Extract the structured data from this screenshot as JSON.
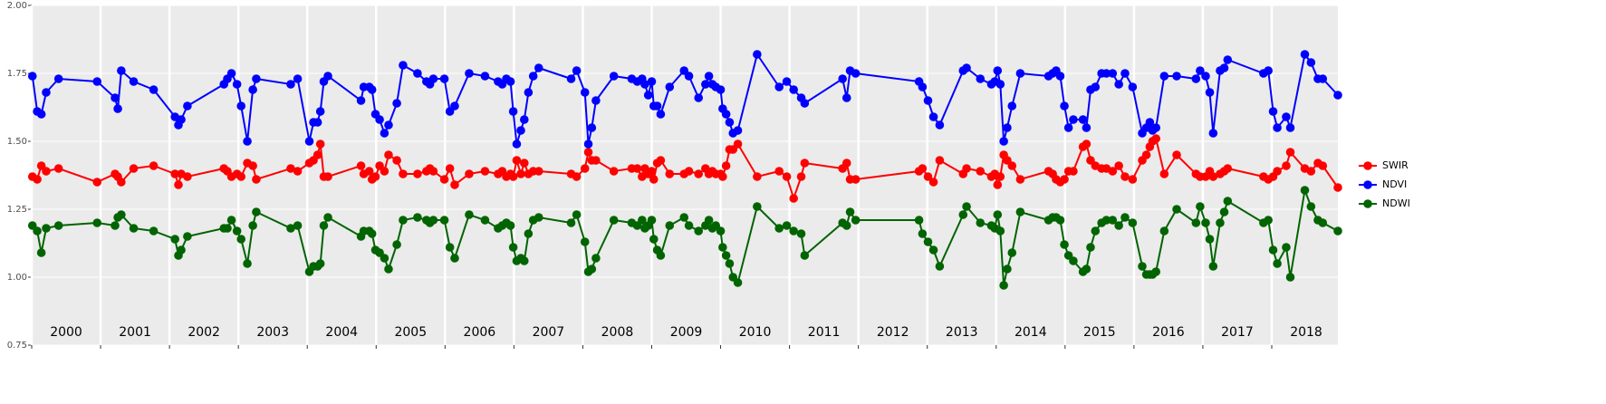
{
  "chart_data": {
    "type": "line",
    "x": [
      2000.01,
      2000.08,
      2000.14,
      2000.21,
      2000.39,
      2000.95,
      2001.21,
      2001.25,
      2001.3,
      2001.48,
      2001.77,
      2002.08,
      2002.13,
      2002.17,
      2002.26,
      2002.79,
      2002.84,
      2002.9,
      2002.98,
      2003.04,
      2003.13,
      2003.21,
      2003.26,
      2003.76,
      2003.86,
      2004.03,
      2004.09,
      2004.15,
      2004.19,
      2004.24,
      2004.3,
      2004.78,
      2004.82,
      2004.9,
      2004.94,
      2004.99,
      2005.05,
      2005.12,
      2005.18,
      2005.3,
      2005.39,
      2005.6,
      2005.73,
      2005.78,
      2005.83,
      2005.99,
      2006.07,
      2006.14,
      2006.35,
      2006.58,
      2006.77,
      2006.83,
      2006.89,
      2006.95,
      2006.99,
      2007.04,
      2007.1,
      2007.15,
      2007.21,
      2007.28,
      2007.36,
      2007.83,
      2007.91,
      2008.03,
      2008.08,
      2008.13,
      2008.19,
      2008.45,
      2008.71,
      2008.79,
      2008.86,
      2008.9,
      2008.95,
      2009.0,
      2009.03,
      2009.08,
      2009.13,
      2009.26,
      2009.47,
      2009.54,
      2009.68,
      2009.78,
      2009.83,
      2009.88,
      2009.93,
      2010.0,
      2010.03,
      2010.08,
      2010.13,
      2010.18,
      2010.25,
      2010.53,
      2010.85,
      2010.96,
      2011.06,
      2011.17,
      2011.22,
      2011.77,
      2011.83,
      2011.88,
      2011.96,
      2012.88,
      2012.93,
      2013.01,
      2013.09,
      2013.18,
      2013.52,
      2013.57,
      2013.77,
      2013.93,
      2013.98,
      2014.02,
      2014.06,
      2014.11,
      2014.16,
      2014.23,
      2014.35,
      2014.76,
      2014.82,
      2014.87,
      2014.93,
      2014.99,
      2015.05,
      2015.12,
      2015.26,
      2015.31,
      2015.37,
      2015.44,
      2015.53,
      2015.6,
      2015.69,
      2015.78,
      2015.87,
      2015.98,
      2016.12,
      2016.18,
      2016.23,
      2016.27,
      2016.32,
      2016.44,
      2016.62,
      2016.9,
      2016.96,
      2017.04,
      2017.1,
      2017.15,
      2017.25,
      2017.31,
      2017.36,
      2017.88,
      2017.95,
      2018.02,
      2018.08,
      2018.21,
      2018.27,
      2018.48,
      2018.57,
      2018.67,
      2018.74,
      2018.96
    ],
    "series": [
      {
        "name": "SWIR",
        "color": "#ff0000",
        "values": [
          1.37,
          1.36,
          1.41,
          1.39,
          1.4,
          1.35,
          1.38,
          1.37,
          1.35,
          1.4,
          1.41,
          1.38,
          1.34,
          1.38,
          1.37,
          1.4,
          1.39,
          1.37,
          1.38,
          1.37,
          1.42,
          1.41,
          1.36,
          1.4,
          1.39,
          1.42,
          1.43,
          1.45,
          1.49,
          1.37,
          1.37,
          1.41,
          1.38,
          1.39,
          1.36,
          1.37,
          1.41,
          1.39,
          1.45,
          1.43,
          1.38,
          1.38,
          1.39,
          1.4,
          1.39,
          1.36,
          1.4,
          1.34,
          1.38,
          1.39,
          1.38,
          1.39,
          1.37,
          1.38,
          1.37,
          1.43,
          1.38,
          1.42,
          1.38,
          1.39,
          1.39,
          1.38,
          1.37,
          1.4,
          1.46,
          1.43,
          1.43,
          1.39,
          1.4,
          1.4,
          1.37,
          1.4,
          1.38,
          1.39,
          1.36,
          1.42,
          1.43,
          1.38,
          1.38,
          1.39,
          1.38,
          1.4,
          1.38,
          1.39,
          1.38,
          1.38,
          1.37,
          1.41,
          1.47,
          1.47,
          1.49,
          1.37,
          1.39,
          1.37,
          1.29,
          1.37,
          1.42,
          1.4,
          1.42,
          1.36,
          1.36,
          1.39,
          1.4,
          1.37,
          1.35,
          1.43,
          1.38,
          1.4,
          1.39,
          1.37,
          1.38,
          1.34,
          1.37,
          1.45,
          1.43,
          1.41,
          1.36,
          1.39,
          1.38,
          1.36,
          1.35,
          1.36,
          1.39,
          1.39,
          1.48,
          1.49,
          1.43,
          1.41,
          1.4,
          1.4,
          1.39,
          1.41,
          1.37,
          1.36,
          1.43,
          1.45,
          1.48,
          1.5,
          1.51,
          1.38,
          1.45,
          1.38,
          1.37,
          1.37,
          1.39,
          1.37,
          1.38,
          1.39,
          1.4,
          1.37,
          1.36,
          1.37,
          1.39,
          1.41,
          1.46,
          1.4,
          1.39,
          1.42,
          1.41,
          1.33
        ]
      },
      {
        "name": "NDVI",
        "color": "#0000ff",
        "values": [
          1.74,
          1.61,
          1.6,
          1.68,
          1.73,
          1.72,
          1.66,
          1.62,
          1.76,
          1.72,
          1.69,
          1.59,
          1.56,
          1.58,
          1.63,
          1.71,
          1.73,
          1.75,
          1.71,
          1.63,
          1.5,
          1.69,
          1.73,
          1.71,
          1.73,
          1.5,
          1.57,
          1.57,
          1.61,
          1.72,
          1.74,
          1.65,
          1.7,
          1.7,
          1.69,
          1.6,
          1.58,
          1.53,
          1.56,
          1.64,
          1.78,
          1.75,
          1.72,
          1.71,
          1.73,
          1.73,
          1.61,
          1.63,
          1.75,
          1.74,
          1.72,
          1.71,
          1.73,
          1.72,
          1.61,
          1.49,
          1.54,
          1.58,
          1.68,
          1.74,
          1.77,
          1.73,
          1.76,
          1.68,
          1.49,
          1.55,
          1.65,
          1.74,
          1.73,
          1.72,
          1.73,
          1.71,
          1.67,
          1.72,
          1.63,
          1.63,
          1.6,
          1.7,
          1.76,
          1.74,
          1.66,
          1.71,
          1.74,
          1.71,
          1.7,
          1.69,
          1.62,
          1.6,
          1.57,
          1.53,
          1.54,
          1.82,
          1.7,
          1.72,
          1.69,
          1.66,
          1.64,
          1.73,
          1.66,
          1.76,
          1.75,
          1.72,
          1.7,
          1.65,
          1.59,
          1.56,
          1.76,
          1.77,
          1.73,
          1.71,
          1.72,
          1.76,
          1.71,
          1.5,
          1.55,
          1.63,
          1.75,
          1.74,
          1.75,
          1.76,
          1.74,
          1.63,
          1.55,
          1.58,
          1.58,
          1.55,
          1.69,
          1.7,
          1.75,
          1.75,
          1.75,
          1.71,
          1.75,
          1.7,
          1.53,
          1.55,
          1.57,
          1.54,
          1.55,
          1.74,
          1.74,
          1.73,
          1.76,
          1.74,
          1.68,
          1.53,
          1.76,
          1.77,
          1.8,
          1.75,
          1.76,
          1.61,
          1.55,
          1.59,
          1.55,
          1.82,
          1.79,
          1.73,
          1.73,
          1.67
        ]
      },
      {
        "name": "NDWI",
        "color": "#006400",
        "values": [
          1.19,
          1.17,
          1.09,
          1.18,
          1.19,
          1.2,
          1.19,
          1.22,
          1.23,
          1.18,
          1.17,
          1.14,
          1.08,
          1.1,
          1.15,
          1.18,
          1.18,
          1.21,
          1.17,
          1.14,
          1.05,
          1.19,
          1.24,
          1.18,
          1.19,
          1.02,
          1.04,
          1.04,
          1.05,
          1.19,
          1.22,
          1.15,
          1.17,
          1.17,
          1.16,
          1.1,
          1.09,
          1.07,
          1.03,
          1.12,
          1.21,
          1.22,
          1.21,
          1.2,
          1.21,
          1.21,
          1.11,
          1.07,
          1.23,
          1.21,
          1.18,
          1.19,
          1.2,
          1.19,
          1.11,
          1.06,
          1.07,
          1.06,
          1.16,
          1.21,
          1.22,
          1.2,
          1.23,
          1.13,
          1.02,
          1.03,
          1.07,
          1.21,
          1.2,
          1.19,
          1.21,
          1.18,
          1.19,
          1.21,
          1.14,
          1.1,
          1.08,
          1.19,
          1.22,
          1.19,
          1.17,
          1.19,
          1.21,
          1.18,
          1.19,
          1.17,
          1.11,
          1.08,
          1.05,
          1.0,
          0.98,
          1.26,
          1.18,
          1.19,
          1.17,
          1.16,
          1.08,
          1.2,
          1.19,
          1.24,
          1.21,
          1.21,
          1.16,
          1.13,
          1.1,
          1.04,
          1.23,
          1.26,
          1.2,
          1.19,
          1.18,
          1.23,
          1.17,
          0.97,
          1.03,
          1.09,
          1.24,
          1.21,
          1.22,
          1.22,
          1.21,
          1.12,
          1.08,
          1.06,
          1.02,
          1.03,
          1.11,
          1.17,
          1.2,
          1.21,
          1.21,
          1.19,
          1.22,
          1.2,
          1.04,
          1.01,
          1.01,
          1.01,
          1.02,
          1.17,
          1.25,
          1.2,
          1.26,
          1.2,
          1.14,
          1.04,
          1.2,
          1.24,
          1.28,
          1.2,
          1.21,
          1.1,
          1.05,
          1.11,
          1.0,
          1.32,
          1.26,
          1.21,
          1.2,
          1.17
        ]
      }
    ],
    "xlim": [
      2000,
      2018.96
    ],
    "xticks": [
      2000,
      2001,
      2002,
      2003,
      2004,
      2005,
      2006,
      2007,
      2008,
      2009,
      2010,
      2011,
      2012,
      2013,
      2014,
      2015,
      2016,
      2017,
      2018
    ],
    "ylim": [
      0.75,
      2.0
    ],
    "yticks": [
      {
        "value": 0.75,
        "label": "0.75"
      },
      {
        "value": 1.0,
        "label": "1.00"
      },
      {
        "value": 1.25,
        "label": "1.25"
      },
      {
        "value": 1.5,
        "label": "1.50"
      },
      {
        "value": 1.75,
        "label": "1.75"
      },
      {
        "value": 2.0,
        "label": "2.00"
      }
    ],
    "grid": true,
    "legend": "right"
  }
}
